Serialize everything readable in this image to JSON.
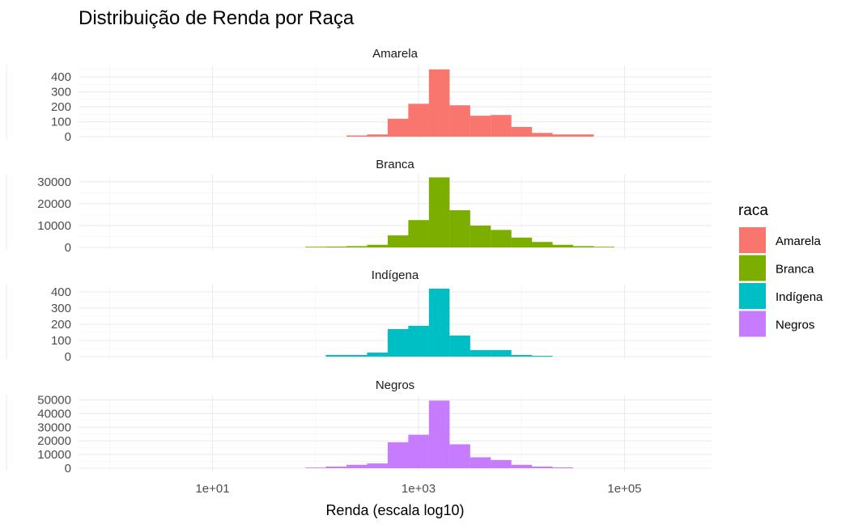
{
  "chart_data": {
    "type": "bar",
    "title": "Distribuição de Renda por Raça",
    "xlabel": "Renda (escala log10)",
    "ylabel": "",
    "x_scale": "log10",
    "xlim": [
      0.5,
      700000
    ],
    "x_ticks": [
      {
        "value": 10,
        "label": "1e+01"
      },
      {
        "value": 1000,
        "label": "1e+03"
      },
      {
        "value": 100000,
        "label": "1e+05"
      }
    ],
    "grid": true,
    "legend": {
      "title": "raca",
      "position": "right"
    },
    "bins": [
      100,
      158,
      251,
      398,
      631,
      1000,
      1585,
      2512,
      3981,
      6310,
      10000,
      15849,
      25119,
      39811,
      63096
    ],
    "series": [
      {
        "name": "Amarela",
        "color": "#F8766D",
        "ylim": [
          0,
          460
        ],
        "y_ticks": [
          0,
          100,
          200,
          300,
          400
        ],
        "values": [
          0,
          0,
          8,
          15,
          120,
          220,
          450,
          210,
          140,
          145,
          65,
          25,
          15,
          15,
          0
        ]
      },
      {
        "name": "Branca",
        "color": "#7CAE00",
        "ylim": [
          0,
          32500
        ],
        "y_ticks": [
          0,
          10000,
          20000,
          30000
        ],
        "values": [
          300,
          400,
          600,
          1200,
          5500,
          12500,
          32000,
          17000,
          10000,
          8000,
          4500,
          2500,
          1200,
          600,
          300
        ]
      },
      {
        "name": "Indígena",
        "color": "#00BFC4",
        "ylim": [
          0,
          430
        ],
        "y_ticks": [
          0,
          100,
          200,
          300,
          400
        ],
        "values": [
          0,
          10,
          10,
          25,
          170,
          190,
          420,
          130,
          40,
          40,
          10,
          5,
          0,
          0,
          0
        ]
      },
      {
        "name": "Negros",
        "color": "#C77CFF",
        "ylim": [
          0,
          51500
        ],
        "y_ticks": [
          0,
          10000,
          20000,
          30000,
          40000,
          50000
        ],
        "values": [
          500,
          1200,
          2500,
          3500,
          19000,
          24500,
          49500,
          17500,
          8000,
          6000,
          2500,
          1200,
          600,
          0,
          0
        ]
      }
    ]
  }
}
